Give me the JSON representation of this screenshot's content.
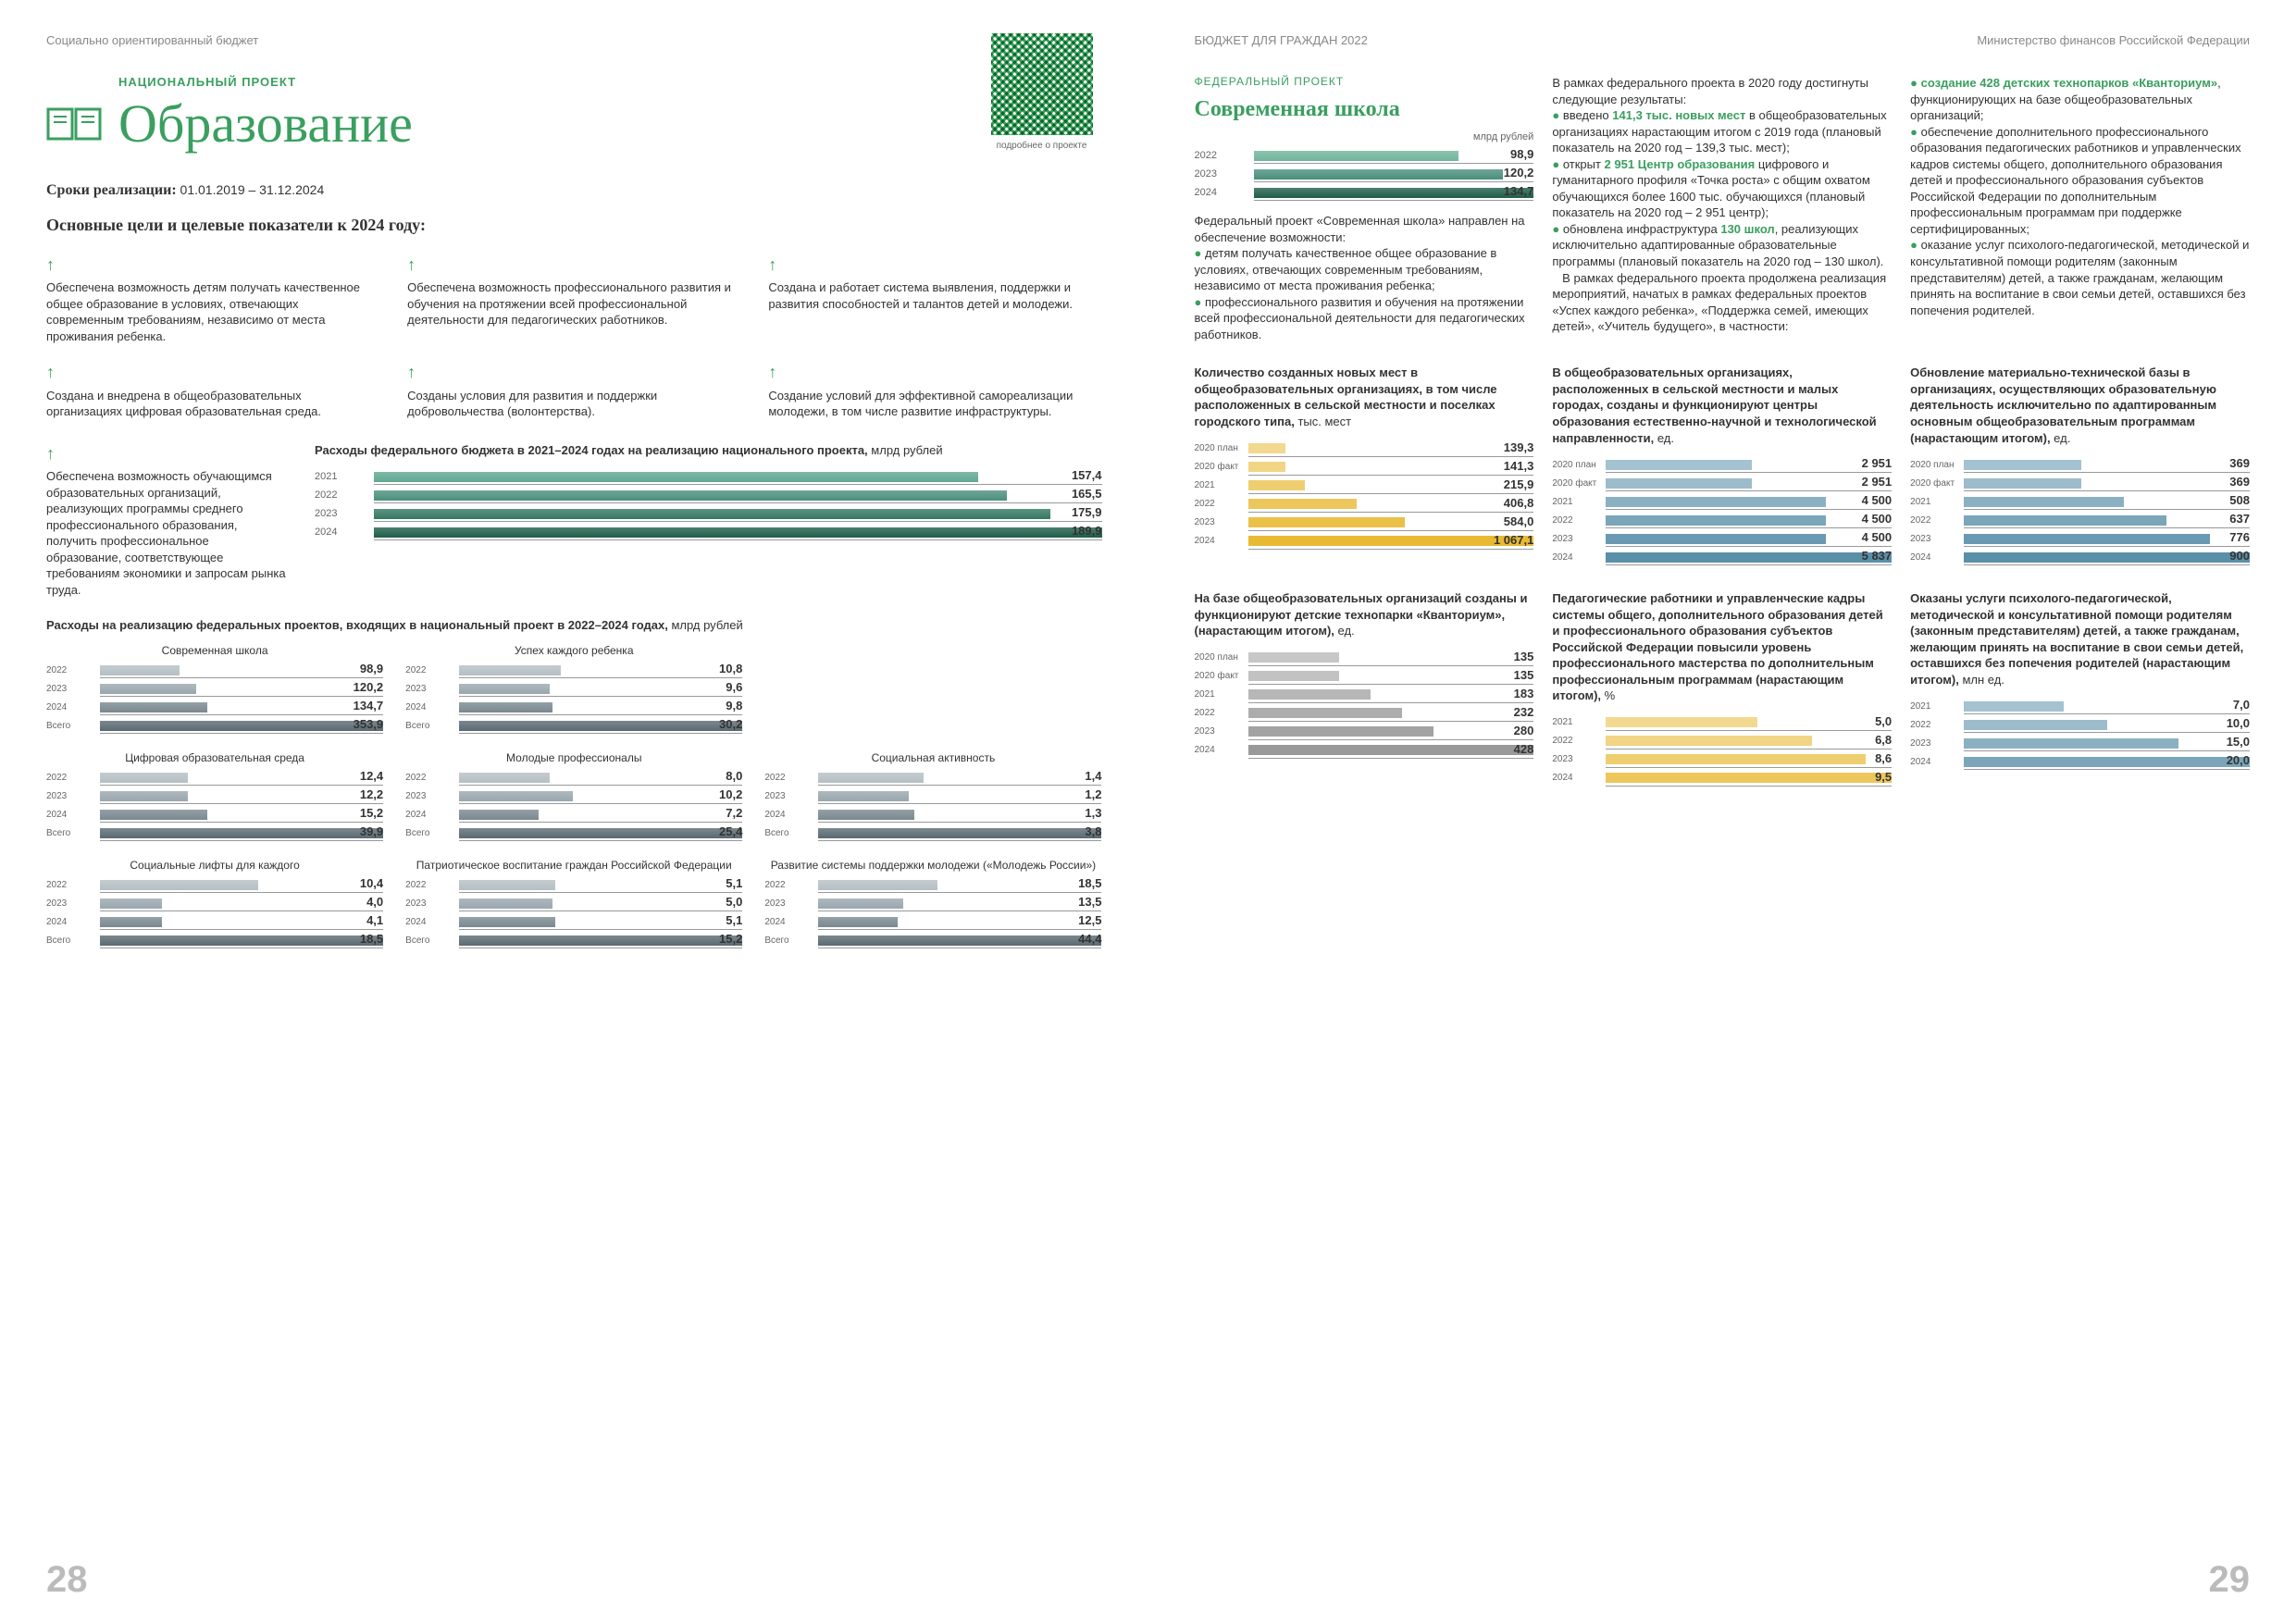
{
  "header": {
    "left": "Социально ориентированный бюджет",
    "right_l": "БЮДЖЕТ ДЛЯ ГРАЖДАН 2022",
    "right_r": "Министерство финансов Российской Федерации"
  },
  "nat_project": {
    "subtitle": "НАЦИОНАЛЬНЫЙ ПРОЕКТ",
    "title": "Образование",
    "qr_caption": "подробнее о проекте"
  },
  "timeline": {
    "label": "Сроки реализации:",
    "dates": "01.01.2019 – 31.12.2024"
  },
  "goals_title": "Основные цели и целевые показатели к 2024 году:",
  "goals": [
    "Обеспечена возможность детям получать качественное общее образование в условиях, отвечающих современным требованиям, независимо от места проживания ребенка.",
    "Обеспечена возможность профессионального развития и обучения на протяжении всей профессиональной деятельности для педагогических работников.",
    "Создана и работает система выявления, поддержки и развития способностей и талантов детей и молодежи.",
    "Создана и внедрена в общеобразовательных организациях цифровая образовательная среда.",
    "Созданы условия для развития и поддержки добровольчества (волонтерства).",
    "Создание условий для эффективной самореализации молодежи, в том числе развитие инфраструктуры.",
    "Обеспечена возможность обучающимся образовательных организаций, реализующих программы среднего профессионального образования, получить профессиональное образование, соответствующее требованиям экономики и запросам рынка труда."
  ],
  "budget_chart": {
    "title": "Расходы федерального бюджета в 2021–2024 годах на реализацию национального проекта, ",
    "unit": "млрд рублей",
    "rows": [
      {
        "y": "2021",
        "v": "157,4",
        "w": 83,
        "c": "#5fa892"
      },
      {
        "y": "2022",
        "v": "165,5",
        "w": 87,
        "c": "#4a8f7c"
      },
      {
        "y": "2023",
        "v": "175,9",
        "w": 93,
        "c": "#357863"
      },
      {
        "y": "2024",
        "v": "189,9",
        "w": 100,
        "c": "#1f5e4a"
      }
    ]
  },
  "proj_title": "Расходы на реализацию федеральных проектов, входящих в национальный проект в 2022–2024 годах, ",
  "proj_unit": "млрд рублей",
  "projects": [
    {
      "name": "Современная школа",
      "rows": [
        {
          "y": "2022",
          "v": "98,9",
          "w": 28
        },
        {
          "y": "2023",
          "v": "120,2",
          "w": 34
        },
        {
          "y": "2024",
          "v": "134,7",
          "w": 38
        },
        {
          "y": "Всего",
          "v": "353,9",
          "w": 100
        }
      ]
    },
    {
      "name": "Успех каждого ребенка",
      "rows": [
        {
          "y": "2022",
          "v": "10,8",
          "w": 36
        },
        {
          "y": "2023",
          "v": "9,6",
          "w": 32
        },
        {
          "y": "2024",
          "v": "9,8",
          "w": 33
        },
        {
          "y": "Всего",
          "v": "30,2",
          "w": 100
        }
      ]
    },
    {
      "name": "",
      "rows": []
    },
    {
      "name": "Цифровая образовательная среда",
      "rows": [
        {
          "y": "2022",
          "v": "12,4",
          "w": 31
        },
        {
          "y": "2023",
          "v": "12,2",
          "w": 31
        },
        {
          "y": "2024",
          "v": "15,2",
          "w": 38
        },
        {
          "y": "Всего",
          "v": "39,9",
          "w": 100
        }
      ]
    },
    {
      "name": "Молодые профессионалы",
      "rows": [
        {
          "y": "2022",
          "v": "8,0",
          "w": 32
        },
        {
          "y": "2023",
          "v": "10,2",
          "w": 40
        },
        {
          "y": "2024",
          "v": "7,2",
          "w": 28
        },
        {
          "y": "Всего",
          "v": "25,4",
          "w": 100
        }
      ]
    },
    {
      "name": "Социальная активность",
      "rows": [
        {
          "y": "2022",
          "v": "1,4",
          "w": 37
        },
        {
          "y": "2023",
          "v": "1,2",
          "w": 32
        },
        {
          "y": "2024",
          "v": "1,3",
          "w": 34
        },
        {
          "y": "Всего",
          "v": "3,8",
          "w": 100
        }
      ]
    },
    {
      "name": "Социальные лифты для каждого",
      "rows": [
        {
          "y": "2022",
          "v": "10,4",
          "w": 56
        },
        {
          "y": "2023",
          "v": "4,0",
          "w": 22
        },
        {
          "y": "2024",
          "v": "4,1",
          "w": 22
        },
        {
          "y": "Всего",
          "v": "18,5",
          "w": 100
        }
      ]
    },
    {
      "name": "Патриотическое воспитание граждан Российской Федерации",
      "rows": [
        {
          "y": "2022",
          "v": "5,1",
          "w": 34
        },
        {
          "y": "2023",
          "v": "5,0",
          "w": 33
        },
        {
          "y": "2024",
          "v": "5,1",
          "w": 34
        },
        {
          "y": "Всего",
          "v": "15,2",
          "w": 100
        }
      ]
    },
    {
      "name": "Развитие системы поддержки молодежи («Молодежь России»)",
      "rows": [
        {
          "y": "2022",
          "v": "18,5",
          "w": 42
        },
        {
          "y": "2023",
          "v": "13,5",
          "w": 30
        },
        {
          "y": "2024",
          "v": "12,5",
          "w": 28
        },
        {
          "y": "Всего",
          "v": "44,4",
          "w": 100
        }
      ]
    }
  ],
  "fed": {
    "label": "ФЕДЕРАЛЬНЫЙ ПРОЕКТ",
    "title": "Современная школа",
    "unit": "млрд рублей",
    "bars": [
      {
        "y": "2022",
        "v": "98,9",
        "w": 73,
        "c": "#6fb59c"
      },
      {
        "y": "2023",
        "v": "120,2",
        "w": 89,
        "c": "#4a8f7c"
      },
      {
        "y": "2024",
        "v": "134,7",
        "w": 100,
        "c": "#1f5e4a"
      }
    ],
    "intro": "Федеральный проект «Современная школа» направлен на обеспечение возможности:",
    "bul1": "детям получать качественное общее образование в условиях, отвечающих современным требованиям, независимо от места проживания ребенка;",
    "bul2": "профессионального развития и обучения на протяжении всей профессиональной деятельности для педагогических работников."
  },
  "col2_top": {
    "p1": "В рамках федерального проекта в 2020 году достигнуты следующие результаты:",
    "b1a": "введено ",
    "b1b": "141,3 тыс. новых мест",
    "b1c": " в общеобразовательных организациях нарастающим итогом с 2019 года (плановый показатель на 2020 год – 139,3 тыс. мест);",
    "b2a": "открыт ",
    "b2b": "2 951 Центр образования",
    "b2c": " цифрового и гуманитарного профиля «Точка роста» с общим охватом обучающихся более 1600 тыс. обучающихся (плановый показатель на 2020 год – 2 951 центр);",
    "b3a": "обновлена инфраструктура ",
    "b3b": "130 школ",
    "b3c": ", реализующих исключительно адаптированные образовательные программы (плановый показатель на 2020 год – 130 школ).",
    "p2": "В рамках федерального проекта продолжена реализация мероприятий, начатых в рамках федеральных проектов «Успех каждого ребенка», «Поддержка семей, имеющих детей», «Учитель будущего», в частности:"
  },
  "col3_top": {
    "b1a": "создание ",
    "b1b": "428 детских технопарков «Кванториум»",
    "b1c": ", функционирующих на базе общеобразовательных организаций;",
    "b2": "обеспечение дополнительного профессионального образования педагогических работников и управленческих кадров системы общего, дополнительного образования детей и профессионального образования субъектов Российской Федерации по дополнительным профессиональным программам при поддержке сертифицированных;",
    "b3": "оказание услуг психолого-педагогической, методической и консультативной помощи родителям (законным представителям) детей, а также гражданам, желающим принять на воспитание в свои семьи детей, оставшихся без попечения родителей."
  },
  "row2_charts": [
    {
      "title": "Количество созданных новых мест в общеобразовательных организациях, в том числе расположенных в сельской местности и поселках городского типа,",
      "unit": "тыс. мест",
      "color": "#e8b933",
      "rows": [
        {
          "y": "2020 план",
          "v": "139,3",
          "w": 13
        },
        {
          "y": "2020 факт",
          "v": "141,3",
          "w": 13
        },
        {
          "y": "2021",
          "v": "215,9",
          "w": 20
        },
        {
          "y": "2022",
          "v": "406,8",
          "w": 38
        },
        {
          "y": "2023",
          "v": "584,0",
          "w": 55
        },
        {
          "y": "2024",
          "v": "1 067,1",
          "w": 100
        }
      ]
    },
    {
      "title": "В общеобразовательных организациях, расположенных в сельской местности и малых городах, созданы и функционируют центры образования естественно-научной и технологической направленности,",
      "unit": "ед.",
      "color": "#5a8fa8",
      "rows": [
        {
          "y": "2020 план",
          "v": "2 951",
          "w": 51
        },
        {
          "y": "2020 факт",
          "v": "2 951",
          "w": 51
        },
        {
          "y": "2021",
          "v": "4 500",
          "w": 77
        },
        {
          "y": "2022",
          "v": "4 500",
          "w": 77
        },
        {
          "y": "2023",
          "v": "4 500",
          "w": 77
        },
        {
          "y": "2024",
          "v": "5 837",
          "w": 100
        }
      ]
    },
    {
      "title": "Обновление материально-технической базы в организациях, осуществляющих образовательную деятельность исключительно по адаптированным основным общеобразовательным программам (нарастающим итогом),",
      "unit": "ед.",
      "color": "#5a8fa8",
      "rows": [
        {
          "y": "2020 план",
          "v": "369",
          "w": 41
        },
        {
          "y": "2020 факт",
          "v": "369",
          "w": 41
        },
        {
          "y": "2021",
          "v": "508",
          "w": 56
        },
        {
          "y": "2022",
          "v": "637",
          "w": 71
        },
        {
          "y": "2023",
          "v": "776",
          "w": 86
        },
        {
          "y": "2024",
          "v": "900",
          "w": 100
        }
      ]
    }
  ],
  "row3_charts": [
    {
      "title": "На базе общеобразовательных организаций созданы и функционируют детские технопарки «Кванториум», (нарастающим итогом),",
      "unit": "ед.",
      "color": "#999",
      "rows": [
        {
          "y": "2020 план",
          "v": "135",
          "w": 32
        },
        {
          "y": "2020 факт",
          "v": "135",
          "w": 32
        },
        {
          "y": "2021",
          "v": "183",
          "w": 43
        },
        {
          "y": "2022",
          "v": "232",
          "w": 54
        },
        {
          "y": "2023",
          "v": "280",
          "w": 65
        },
        {
          "y": "2024",
          "v": "428",
          "w": 100
        }
      ]
    },
    {
      "title": "Педагогические работники и управленческие кадры системы общего, дополнительного образования детей и профессионального образования субъектов Российской Федерации повысили уровень профессионального мастерства по дополнительным профессиональным программам (нарастающим итогом),",
      "unit": "%",
      "color": "#e8b933",
      "rows": [
        {
          "y": "2021",
          "v": "5,0",
          "w": 53
        },
        {
          "y": "2022",
          "v": "6,8",
          "w": 72
        },
        {
          "y": "2023",
          "v": "8,6",
          "w": 91
        },
        {
          "y": "2024",
          "v": "9,5",
          "w": 100
        }
      ]
    },
    {
      "title": "Оказаны услуги психолого-педагогической, методической и консультативной помощи родителям (законным представителям) детей, а также гражданам, желающим принять на воспитание в свои семьи детей, оставшихся без попечения родителей (нарастающим итогом),",
      "unit": "млн ед.",
      "color": "#5a8fa8",
      "rows": [
        {
          "y": "2021",
          "v": "7,0",
          "w": 35
        },
        {
          "y": "2022",
          "v": "10,0",
          "w": 50
        },
        {
          "y": "2023",
          "v": "15,0",
          "w": 75
        },
        {
          "y": "2024",
          "v": "20,0",
          "w": 100
        }
      ]
    }
  ],
  "pg_left": "28",
  "pg_right": "29",
  "colors": {
    "gray": "#9aa7ae",
    "gray2": "#7a8890",
    "gray3": "#5a6a72"
  }
}
